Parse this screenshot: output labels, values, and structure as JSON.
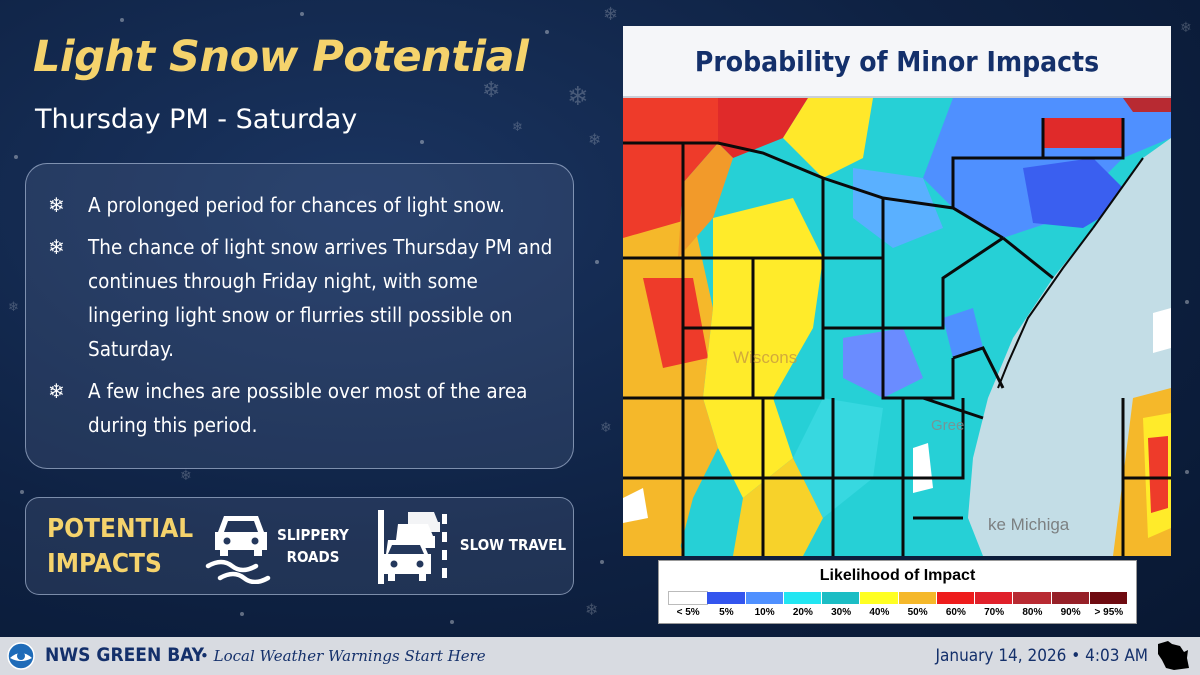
{
  "header": {
    "title": "Light Snow Potential",
    "subtitle": "Thursday PM - Saturday"
  },
  "bullets": [
    {
      "icon": "snowflake-icon",
      "text": "A prolonged period for chances of light snow."
    },
    {
      "icon": "snowflake-icon",
      "text": "The chance of light snow arrives Thursday PM and continues through Friday night, with some lingering light snow or flurries still possible on Saturday."
    },
    {
      "icon": "snowflake-icon",
      "text": "A few inches are possible over most of the area during this period."
    }
  ],
  "impacts": {
    "title": "POTENTIAL IMPACTS",
    "items": [
      {
        "icon": "slippery-car-icon",
        "label": "SLIPPERY ROADS"
      },
      {
        "icon": "traffic-jam-icon",
        "label": "SLOW TRAVEL"
      }
    ]
  },
  "map": {
    "title": "Probability of Minor Impacts",
    "place_labels": [
      "Wiscons",
      "Gree",
      "ke Michiga"
    ],
    "legend": {
      "title": "Likelihood of Impact",
      "bins": [
        {
          "label": "< 5%",
          "color": "#ffffff"
        },
        {
          "label": "5%",
          "color": "#3355ee"
        },
        {
          "label": "10%",
          "color": "#4f90ff"
        },
        {
          "label": "20%",
          "color": "#22e6f2"
        },
        {
          "label": "30%",
          "color": "#1bbdc4"
        },
        {
          "label": "40%",
          "color": "#ffff22"
        },
        {
          "label": "50%",
          "color": "#f5b82a"
        },
        {
          "label": "60%",
          "color": "#ee1c1c"
        },
        {
          "label": "70%",
          "color": "#e0202a"
        },
        {
          "label": "80%",
          "color": "#b82a32"
        },
        {
          "label": "90%",
          "color": "#962028"
        },
        {
          "label": "> 95%",
          "color": "#6e0a10"
        }
      ]
    },
    "colors": {
      "water": "#c3dde6",
      "border": "#0a0a0a"
    }
  },
  "footer": {
    "office": "NWS GREEN BAY",
    "tagline": "• Local Weather Warnings Start Here",
    "datetime": "January 14, 2026   •   4:03 AM"
  },
  "colors": {
    "accent_gold": "#f5d36c",
    "navy": "#14306b"
  }
}
